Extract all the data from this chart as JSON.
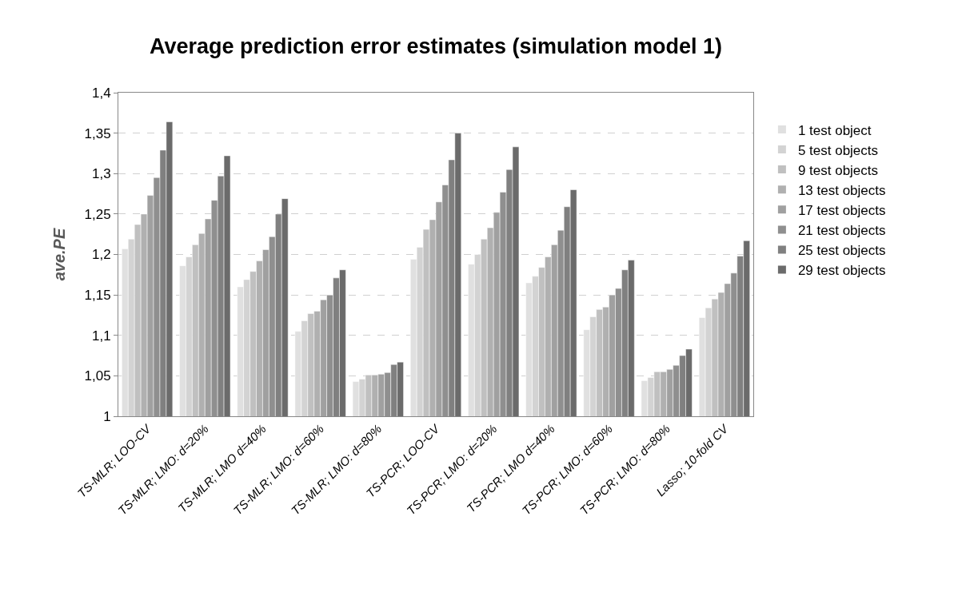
{
  "chart_data": {
    "type": "bar",
    "title": "Average prediction error estimates (simulation model 1)",
    "ylabel": "ave.PE",
    "categories": [
      "TS-MLR; LOO-CV",
      "TS-MLR; LMO: d=20%",
      "TS-MLR; LMO d=40%",
      "TS-MLR; LMO: d=60%",
      "TS-MLR; LMO: d=80%",
      "TS-PCR; LOO-CV",
      "TS-PCR; LMO: d=20%",
      "TS-PCR; LMO d=40%",
      "TS-PCR; LMO: d=60%",
      "TS-PCR; LMO: d=80%",
      "Lasso; 10-fold CV"
    ],
    "series": [
      {
        "name": "1 test object",
        "color": "#e0e0e0",
        "values": [
          1.207,
          1.186,
          1.16,
          1.105,
          1.043,
          1.194,
          1.188,
          1.165,
          1.107,
          1.044,
          1.122
        ]
      },
      {
        "name": "5 test objects",
        "color": "#d3d3d3",
        "values": [
          1.219,
          1.197,
          1.169,
          1.118,
          1.046,
          1.209,
          1.2,
          1.173,
          1.123,
          1.048,
          1.134
        ]
      },
      {
        "name": "9 test objects",
        "color": "#c0c0c0",
        "values": [
          1.237,
          1.212,
          1.179,
          1.127,
          1.051,
          1.231,
          1.219,
          1.184,
          1.132,
          1.055,
          1.145
        ]
      },
      {
        "name": "13 test objects",
        "color": "#b0b0b0",
        "values": [
          1.25,
          1.226,
          1.192,
          1.13,
          1.051,
          1.243,
          1.233,
          1.197,
          1.135,
          1.055,
          1.153
        ]
      },
      {
        "name": "17 test objects",
        "color": "#a0a0a0",
        "values": [
          1.273,
          1.244,
          1.206,
          1.144,
          1.052,
          1.265,
          1.252,
          1.212,
          1.15,
          1.058,
          1.164
        ]
      },
      {
        "name": "21 test objects",
        "color": "#8f8f8f",
        "values": [
          1.295,
          1.267,
          1.222,
          1.15,
          1.054,
          1.286,
          1.277,
          1.23,
          1.158,
          1.063,
          1.177
        ]
      },
      {
        "name": "25 test objects",
        "color": "#808080",
        "values": [
          1.329,
          1.297,
          1.25,
          1.171,
          1.064,
          1.317,
          1.305,
          1.259,
          1.181,
          1.075,
          1.198
        ]
      },
      {
        "name": "29 test objects",
        "color": "#6b6b6b",
        "values": [
          1.364,
          1.322,
          1.269,
          1.181,
          1.067,
          1.35,
          1.333,
          1.28,
          1.193,
          1.083,
          1.217
        ]
      }
    ],
    "ylim": [
      1,
      1.4
    ],
    "yticks": [
      {
        "value": 1,
        "label": "1"
      },
      {
        "value": 1.05,
        "label": "1,05"
      },
      {
        "value": 1.1,
        "label": "1,1"
      },
      {
        "value": 1.15,
        "label": "1,15"
      },
      {
        "value": 1.2,
        "label": "1,2"
      },
      {
        "value": 1.25,
        "label": "1,25"
      },
      {
        "value": 1.3,
        "label": "1,3"
      },
      {
        "value": 1.35,
        "label": "1,35"
      },
      {
        "value": 1.4,
        "label": "1,4"
      }
    ],
    "grid": "y",
    "legend": "right"
  }
}
